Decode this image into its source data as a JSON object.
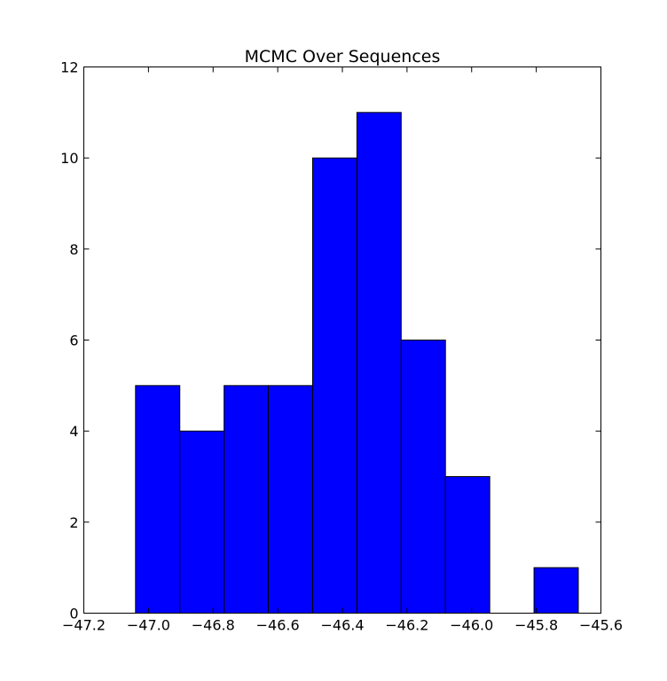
{
  "chart_data": {
    "type": "bar",
    "title": "MCMC Over Sequences",
    "xlabel": "",
    "ylabel": "",
    "xlim": [
      -47.2,
      -45.6
    ],
    "ylim": [
      0,
      12
    ],
    "x_ticks": [
      -47.2,
      -47.0,
      -46.8,
      -46.6,
      -46.4,
      -46.2,
      -46.0,
      -45.8,
      -45.6
    ],
    "x_tick_labels": [
      "−47.2",
      "−47.0",
      "−46.8",
      "−46.6",
      "−46.4",
      "−46.2",
      "−46.0",
      "−45.8",
      "−45.6"
    ],
    "y_ticks": [
      0,
      2,
      4,
      6,
      8,
      10,
      12
    ],
    "y_tick_labels": [
      "0",
      "2",
      "4",
      "6",
      "8",
      "10",
      "12"
    ],
    "bin_edges": [
      -47.04,
      -46.903,
      -46.766,
      -46.629,
      -46.492,
      -46.355,
      -46.218,
      -46.081,
      -45.944,
      -45.807,
      -45.67
    ],
    "values": [
      5,
      4,
      5,
      5,
      10,
      11,
      6,
      3,
      0,
      1
    ],
    "grid": false,
    "bar_color": "#0000ff",
    "edge_color": "#000000"
  }
}
